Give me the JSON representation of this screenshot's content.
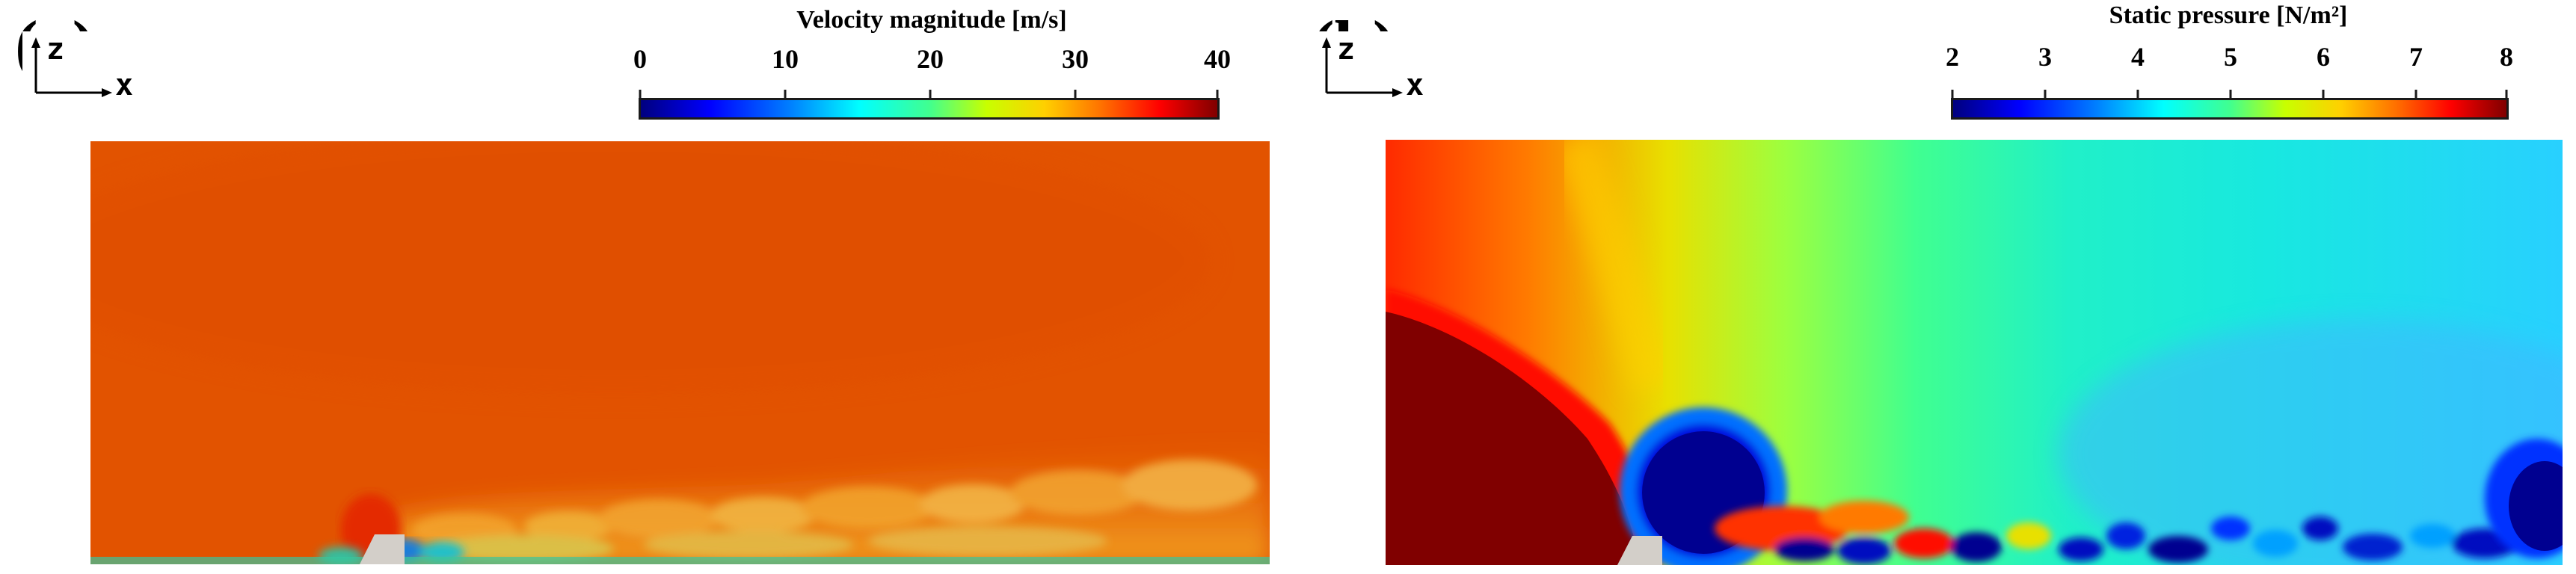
{
  "panels": {
    "a": {
      "label": "(a)",
      "colorbar": {
        "title": "Velocity magnitude [m/s]",
        "ticks": [
          "0",
          "10",
          "20",
          "30",
          "40"
        ],
        "range": [
          0,
          40
        ]
      },
      "axes": {
        "vertical": "z",
        "horizontal": "x"
      },
      "dominant_color": "#e05000"
    },
    "b": {
      "label": "(b)",
      "colorbar": {
        "title": "Static pressure [N/m²]",
        "ticks": [
          "2",
          "3",
          "4",
          "5",
          "6",
          "7",
          "8"
        ],
        "range": [
          2,
          8
        ]
      },
      "axes": {
        "vertical": "z",
        "horizontal": "x"
      }
    }
  },
  "colormap": {
    "name": "jet",
    "stops": [
      "#00007f",
      "#0000ff",
      "#0080ff",
      "#00ffff",
      "#40ff90",
      "#c8ff00",
      "#ffd000",
      "#ff7000",
      "#ff0000",
      "#800000"
    ]
  }
}
